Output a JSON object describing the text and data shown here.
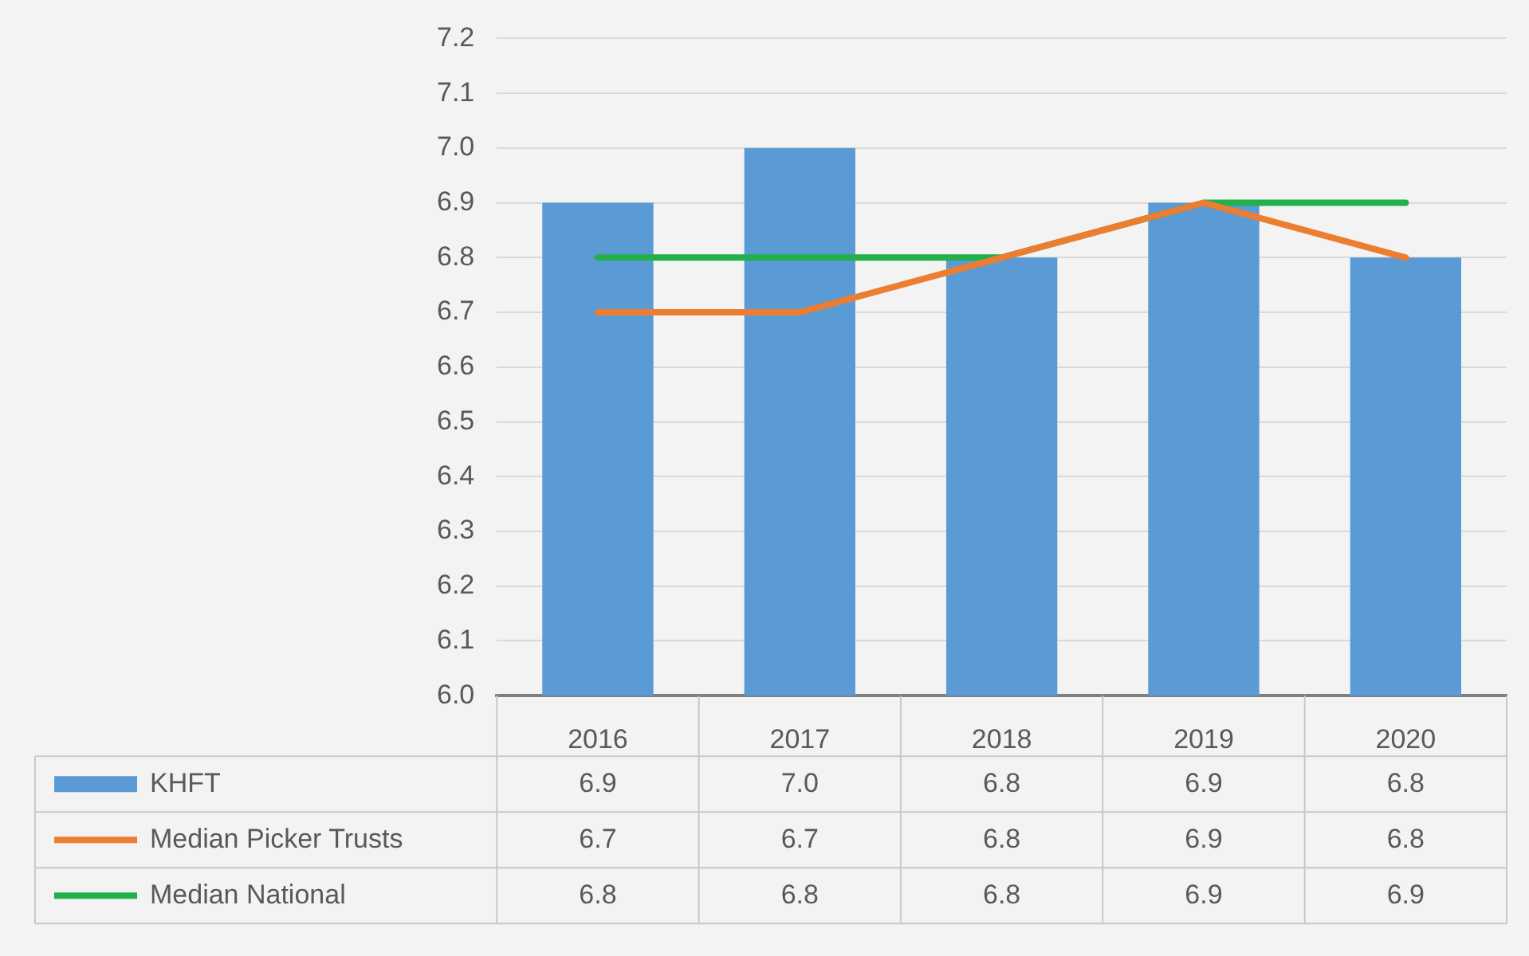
{
  "chart_data": {
    "type": "bar",
    "categories": [
      "2016",
      "2017",
      "2018",
      "2019",
      "2020"
    ],
    "series": [
      {
        "name": "KHFT",
        "color": "#5b9bd5",
        "values": [
          6.9,
          7.0,
          6.8,
          6.9,
          6.8
        ],
        "value_labels": [
          "6.9",
          "7.0",
          "6.8",
          "6.9",
          "6.8"
        ]
      },
      {
        "name": "Median Picker Trusts",
        "type": "line",
        "color": "#ed7d31",
        "values": [
          6.7,
          6.7,
          6.8,
          6.9,
          6.8
        ],
        "value_labels": [
          "6.7",
          "6.7",
          "6.8",
          "6.9",
          "6.8"
        ]
      },
      {
        "name": "Median National",
        "type": "line",
        "color": "#22b04b",
        "values": [
          6.8,
          6.8,
          6.8,
          6.9,
          6.9
        ],
        "value_labels": [
          "6.8",
          "6.8",
          "6.8",
          "6.9",
          "6.9"
        ]
      }
    ],
    "ylim": [
      6.0,
      7.2
    ],
    "yticks": [
      {
        "value": 6.0,
        "label": "6.0"
      },
      {
        "value": 6.1,
        "label": "6.1"
      },
      {
        "value": 6.2,
        "label": "6.2"
      },
      {
        "value": 6.3,
        "label": "6.3"
      },
      {
        "value": 6.4,
        "label": "6.4"
      },
      {
        "value": 6.5,
        "label": "6.5"
      },
      {
        "value": 6.6,
        "label": "6.6"
      },
      {
        "value": 6.7,
        "label": "6.7"
      },
      {
        "value": 6.8,
        "label": "6.8"
      },
      {
        "value": 6.9,
        "label": "6.9"
      },
      {
        "value": 7.0,
        "label": "7.0"
      },
      {
        "value": 7.1,
        "label": "7.1"
      },
      {
        "value": 7.2,
        "label": "7.2"
      }
    ],
    "grid": "y",
    "legend": "bottom",
    "marker": "none"
  }
}
